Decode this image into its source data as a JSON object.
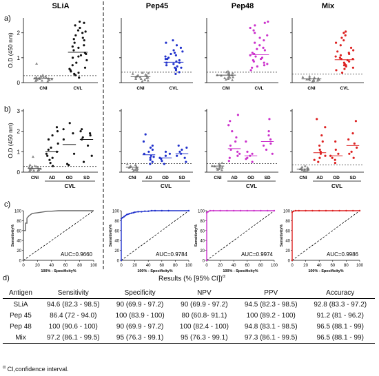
{
  "panel_letters": {
    "a": "a)",
    "b": "b)",
    "c": "c)",
    "d": "d)"
  },
  "antigens": [
    "SLiA",
    "Pep45",
    "Pep48",
    "Mix"
  ],
  "colors": {
    "SLiA": "#111111",
    "Pep45": "#2233cc",
    "Pep48": "#cc33cc",
    "Mix": "#dd2222"
  },
  "chart_data": [
    {
      "panel": "a",
      "type": "scatter",
      "ylabel": "O.D (450 nm)",
      "ylim": [
        0,
        2.6
      ],
      "yticks": [
        0,
        1,
        2
      ],
      "categories": [
        "CNI",
        "CVL"
      ],
      "series": [
        {
          "antigen": "SLiA",
          "cutoff": 0.28,
          "means": [
            0.18,
            1.22
          ],
          "values": [
            [
              0.05,
              0.07,
              0.08,
              0.1,
              0.11,
              0.12,
              0.13,
              0.14,
              0.15,
              0.16,
              0.17,
              0.18,
              0.19,
              0.2,
              0.22,
              0.24,
              0.25,
              0.27,
              0.3,
              0.76
            ],
            [
              0.2,
              0.3,
              0.35,
              0.4,
              0.45,
              0.55,
              0.6,
              0.7,
              0.8,
              0.9,
              1.0,
              1.05,
              1.15,
              1.2,
              1.3,
              1.4,
              1.5,
              1.6,
              1.7,
              1.75,
              1.8,
              1.9,
              2.0,
              2.05,
              2.1,
              2.2,
              2.3,
              2.4,
              2.45,
              0.5,
              1.1,
              1.45
            ]
          ]
        },
        {
          "antigen": "Pep45",
          "cutoff": 0.42,
          "means": [
            0.24,
            0.82
          ],
          "values": [
            [
              0.05,
              0.08,
              0.1,
              0.12,
              0.15,
              0.18,
              0.2,
              0.22,
              0.25,
              0.28,
              0.3,
              0.32,
              0.35,
              0.38,
              0.4,
              0.15,
              0.22
            ],
            [
              0.35,
              0.42,
              0.5,
              0.55,
              0.6,
              0.65,
              0.7,
              0.75,
              0.8,
              0.85,
              0.9,
              0.95,
              1.0,
              1.05,
              1.1,
              1.15,
              1.2,
              1.3,
              1.4,
              1.5,
              1.6,
              1.7,
              0.6,
              0.8,
              0.95,
              1.25
            ]
          ]
        },
        {
          "antigen": "Pep48",
          "cutoff": 0.42,
          "means": [
            0.3,
            1.12
          ],
          "values": [
            [
              0.1,
              0.12,
              0.15,
              0.18,
              0.2,
              0.22,
              0.25,
              0.28,
              0.3,
              0.32,
              0.35,
              0.38,
              0.4,
              0.42,
              0.45,
              0.2,
              0.3
            ],
            [
              0.5,
              0.6,
              0.7,
              0.75,
              0.8,
              0.85,
              0.9,
              0.95,
              1.0,
              1.05,
              1.1,
              1.2,
              1.3,
              1.4,
              1.5,
              1.6,
              1.7,
              1.8,
              1.9,
              2.0,
              2.1,
              2.2,
              2.3,
              2.4,
              2.45,
              0.65,
              1.15,
              1.35
            ]
          ]
        },
        {
          "antigen": "Mix",
          "cutoff": 0.35,
          "means": [
            0.15,
            0.92
          ],
          "values": [
            [
              0.05,
              0.07,
              0.08,
              0.1,
              0.11,
              0.12,
              0.13,
              0.14,
              0.15,
              0.16,
              0.17,
              0.18,
              0.2,
              0.22,
              0.25
            ],
            [
              0.4,
              0.5,
              0.55,
              0.6,
              0.65,
              0.7,
              0.75,
              0.8,
              0.85,
              0.9,
              0.95,
              1.0,
              1.05,
              1.1,
              1.15,
              1.2,
              1.3,
              1.4,
              1.5,
              1.6,
              1.7,
              1.8,
              1.9,
              2.0,
              2.05,
              0.7,
              0.95,
              1.25
            ]
          ]
        }
      ]
    },
    {
      "panel": "b",
      "type": "scatter",
      "ylabel": "O.D (450 nm)",
      "ylim": [
        0,
        3.1
      ],
      "yticks": [
        0,
        1,
        2,
        3
      ],
      "categories": [
        "CNI",
        "AD",
        "OD",
        "SD"
      ],
      "group_label": "CVL",
      "series": [
        {
          "antigen": "SLiA",
          "cutoff": 0.28,
          "means": [
            0.18,
            1.0,
            1.35,
            1.6
          ],
          "values": [
            [
              0.05,
              0.07,
              0.08,
              0.1,
              0.12,
              0.13,
              0.15,
              0.16,
              0.18,
              0.2,
              0.22,
              0.25,
              0.27,
              0.3,
              0.35,
              0.75
            ],
            [
              0.3,
              0.45,
              0.6,
              0.7,
              0.8,
              0.9,
              1.0,
              1.1,
              1.2,
              1.4,
              1.6,
              1.8,
              2.0,
              2.2
            ],
            [
              0.35,
              0.4,
              0.9,
              1.6,
              1.9,
              2.1,
              2.4
            ],
            [
              0.5,
              0.8,
              1.3,
              1.6,
              1.7,
              1.8,
              1.9,
              2.0,
              2.1
            ]
          ]
        },
        {
          "antigen": "Pep45",
          "cutoff": 0.42,
          "means": [
            0.24,
            0.85,
            0.7,
            0.9
          ],
          "values": [
            [
              0.05,
              0.08,
              0.1,
              0.12,
              0.15,
              0.18,
              0.2,
              0.22,
              0.25,
              0.28,
              0.3,
              0.35,
              0.4,
              0.15
            ],
            [
              0.4,
              0.5,
              0.6,
              0.7,
              0.75,
              0.8,
              0.9,
              1.0,
              1.1,
              1.2,
              1.3,
              1.5,
              1.85
            ],
            [
              0.4,
              0.55,
              0.65,
              0.7,
              0.8,
              0.9,
              1.0
            ],
            [
              0.5,
              0.7,
              0.8,
              0.9,
              1.0,
              1.1,
              1.2,
              1.3
            ]
          ]
        },
        {
          "antigen": "Pep48",
          "cutoff": 0.42,
          "means": [
            0.3,
            1.15,
            0.8,
            1.5
          ],
          "values": [
            [
              0.1,
              0.12,
              0.15,
              0.18,
              0.2,
              0.22,
              0.25,
              0.28,
              0.3,
              0.35,
              0.4,
              0.45,
              0.2
            ],
            [
              0.55,
              0.7,
              0.8,
              0.9,
              1.0,
              1.1,
              1.3,
              1.5,
              1.7,
              2.0,
              2.3,
              2.5,
              2.8
            ],
            [
              0.5,
              0.65,
              0.7,
              0.8,
              0.9,
              1.0,
              1.5
            ],
            [
              0.9,
              1.1,
              1.3,
              1.4,
              1.6,
              1.8,
              2.0,
              2.6
            ]
          ]
        },
        {
          "antigen": "Mix",
          "cutoff": 0.35,
          "means": [
            0.15,
            0.95,
            0.8,
            1.3
          ],
          "values": [
            [
              0.05,
              0.07,
              0.08,
              0.1,
              0.12,
              0.13,
              0.15,
              0.16,
              0.18,
              0.2,
              0.22,
              0.25,
              0.3
            ],
            [
              0.5,
              0.6,
              0.7,
              0.8,
              0.9,
              1.0,
              1.1,
              1.3,
              1.5,
              1.8,
              2.2,
              2.6
            ],
            [
              0.45,
              0.6,
              0.7,
              0.8,
              0.9,
              1.1,
              1.5
            ],
            [
              0.7,
              0.9,
              1.0,
              1.2,
              1.4,
              1.6,
              1.9,
              2.5
            ]
          ]
        }
      ]
    },
    {
      "panel": "c",
      "type": "line",
      "xlabel": "100% - Specificity%",
      "ylabel": "Sensitivity%",
      "xlim": [
        0,
        100
      ],
      "ylim": [
        0,
        100
      ],
      "xticks": [
        0,
        20,
        40,
        60,
        80,
        100
      ],
      "yticks": [
        0,
        20,
        40,
        60,
        80,
        100
      ],
      "series": [
        {
          "antigen": "SLiA",
          "auc_label": "AUC=0.9660",
          "x": [
            0,
            0,
            0,
            3,
            3,
            5,
            5,
            8,
            10,
            12,
            15,
            20,
            25,
            30,
            35,
            40,
            50,
            60,
            100
          ],
          "y": [
            0,
            55,
            60,
            60,
            75,
            75,
            85,
            90,
            92,
            94,
            95,
            96,
            97,
            98,
            99,
            99,
            100,
            100,
            100
          ]
        },
        {
          "antigen": "Pep45",
          "auc_label": "AUC=0.9784",
          "x": [
            0,
            0,
            2,
            4,
            6,
            8,
            10,
            12,
            15,
            18,
            20,
            25,
            30,
            35,
            40,
            45,
            50,
            60,
            70,
            100
          ],
          "y": [
            0,
            84,
            86,
            88,
            90,
            92,
            93,
            94,
            95,
            96,
            97,
            98,
            98,
            99,
            99,
            100,
            100,
            100,
            100,
            100
          ]
        },
        {
          "antigen": "Pep48",
          "auc_label": "AUC=0.9974",
          "x": [
            0,
            0,
            2,
            5,
            10,
            20,
            30,
            40,
            50,
            60,
            70,
            80,
            90,
            100
          ],
          "y": [
            0,
            96,
            98,
            100,
            100,
            100,
            100,
            100,
            100,
            100,
            100,
            100,
            100,
            100
          ]
        },
        {
          "antigen": "Mix",
          "auc_label": "AUC=0.9986",
          "x": [
            0,
            0,
            2,
            5,
            10,
            20,
            30,
            40,
            50,
            60,
            70,
            80,
            90,
            100
          ],
          "y": [
            0,
            97,
            99,
            100,
            100,
            100,
            100,
            100,
            100,
            100,
            100,
            100,
            100,
            100
          ]
        }
      ]
    }
  ],
  "results_table": {
    "title": "Results (% [95% CI])",
    "title_sup": "α",
    "headers": [
      "Antigen",
      "Sensitivity",
      "Specificity",
      "NPV",
      "PPV",
      "Accuracy"
    ],
    "rows": [
      [
        "SLiA",
        "94.6 (82.3 - 98.5)",
        "90 (69.9 - 97.2)",
        "90 (69.9 - 97.2)",
        "94.5 (82.3 - 98.5)",
        "92.8 (83.3 - 97.2)"
      ],
      [
        "Pep 45",
        "86.4 (72 - 94.0)",
        "100 (83.9 - 100)",
        "80 (60.8- 91.1)",
        "100 (89.2 - 100)",
        "91.2 (81 - 96.2)"
      ],
      [
        "Pep 48",
        "100 (90.6 - 100)",
        "90 (69.9 - 97.2)",
        "100 (82.4 - 100)",
        "94.8 (83.1 - 98.5)",
        "96.5 (88.1 - 99)"
      ],
      [
        "Mix",
        "97.2 (86.1 - 99.5)",
        "95 (76.3 - 99.1)",
        "95 (76.3 - 99.1)",
        "97.3 (86.1 - 99.5)",
        "96.5 (88.1 - 99)"
      ]
    ],
    "footnote_sup": "α",
    "footnote": "CI,confidence interval."
  }
}
